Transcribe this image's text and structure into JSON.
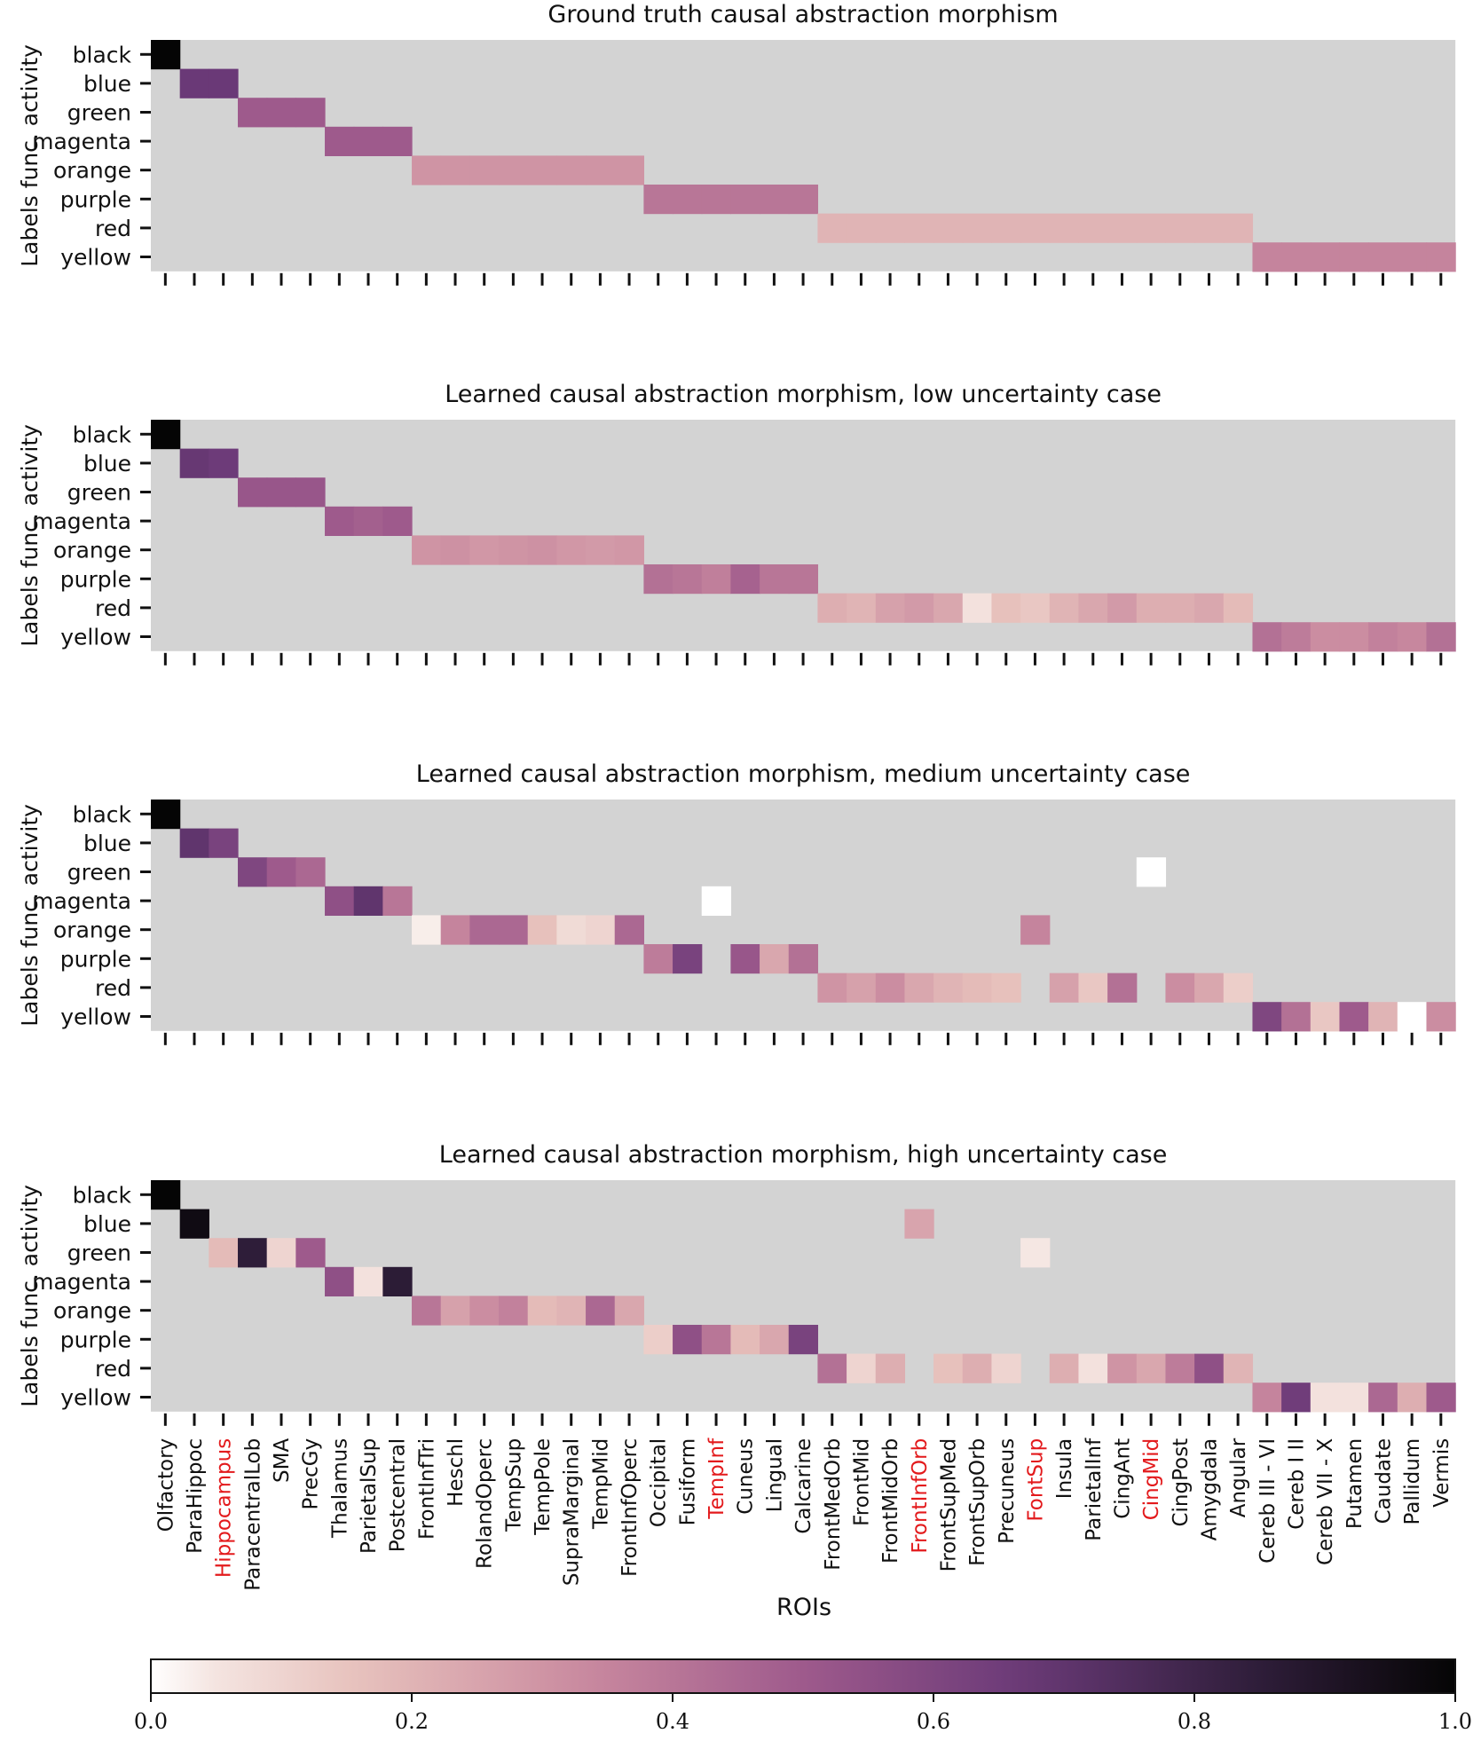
{
  "figure": {
    "xlabel": "ROIs",
    "ylabel": "Labels func. activity"
  },
  "colorbar": {
    "ticks": [
      "0.0",
      "0.2",
      "0.4",
      "0.6",
      "0.8",
      "1.0"
    ],
    "range": [
      0,
      1
    ]
  },
  "chart_data": {
    "type": "heatmap",
    "background_color": "#d3d3d3",
    "highlight_color": "#e31a1c",
    "color_stops": [
      "#faf4f0",
      "#e6bfba",
      "#c9899f",
      "#9e5a8c",
      "#6b3a78",
      "#33203f",
      "#050505"
    ],
    "rows": [
      "black",
      "blue",
      "green",
      "magenta",
      "orange",
      "purple",
      "red",
      "yellow"
    ],
    "columns": [
      "Olfactory",
      "ParaHippoc",
      "Hippocampus",
      "ParacentralLob",
      "SMA",
      "PrecGy",
      "Thalamus",
      "ParietalSup",
      "Postcentral",
      "FrontInfTri",
      "Heschl",
      "RolandOperc",
      "TempSup",
      "TempPole",
      "SupraMarginal",
      "TempMid",
      "FrontInfOperc",
      "Occipital",
      "Fusiform",
      "TempInf",
      "Cuneus",
      "Lingual",
      "Calcarine",
      "FrontMedOrb",
      "FrontMid",
      "FrontMidOrb",
      "FrontInfOrb",
      "FrontSupMed",
      "FrontSupOrb",
      "Precuneus",
      "FontSup",
      "Insula",
      "ParietalInf",
      "CingAnt",
      "CingMid",
      "CingPost",
      "Amygdala",
      "Angular",
      "Cereb III - VI",
      "Cereb I II",
      "Cereb VII - X",
      "Putamen",
      "Caudate",
      "Pallidum",
      "Vermis"
    ],
    "highlighted_columns": [
      "Hippocampus",
      "TempInf",
      "FrontInfOrb",
      "FontSup",
      "CingMid"
    ],
    "panels": [
      {
        "title": "Ground truth causal abstraction morphism",
        "cells": [
          [
            "black",
            0,
            1.0
          ],
          [
            "blue",
            1,
            0.67
          ],
          [
            "blue",
            2,
            0.67
          ],
          [
            "green",
            3,
            0.5
          ],
          [
            "green",
            4,
            0.5
          ],
          [
            "green",
            5,
            0.5
          ],
          [
            "magenta",
            6,
            0.5
          ],
          [
            "magenta",
            7,
            0.5
          ],
          [
            "magenta",
            8,
            0.5
          ],
          [
            "orange",
            9,
            0.3
          ],
          [
            "orange",
            10,
            0.3
          ],
          [
            "orange",
            11,
            0.3
          ],
          [
            "orange",
            12,
            0.3
          ],
          [
            "orange",
            13,
            0.3
          ],
          [
            "orange",
            14,
            0.3
          ],
          [
            "orange",
            15,
            0.3
          ],
          [
            "orange",
            16,
            0.3
          ],
          [
            "purple",
            17,
            0.4
          ],
          [
            "purple",
            18,
            0.4
          ],
          [
            "purple",
            19,
            0.4
          ],
          [
            "purple",
            20,
            0.4
          ],
          [
            "purple",
            21,
            0.4
          ],
          [
            "purple",
            22,
            0.4
          ],
          [
            "red",
            23,
            0.2
          ],
          [
            "red",
            24,
            0.2
          ],
          [
            "red",
            25,
            0.2
          ],
          [
            "red",
            26,
            0.2
          ],
          [
            "red",
            27,
            0.2
          ],
          [
            "red",
            28,
            0.2
          ],
          [
            "red",
            29,
            0.2
          ],
          [
            "red",
            30,
            0.2
          ],
          [
            "red",
            31,
            0.2
          ],
          [
            "red",
            32,
            0.2
          ],
          [
            "red",
            33,
            0.2
          ],
          [
            "red",
            34,
            0.2
          ],
          [
            "red",
            35,
            0.2
          ],
          [
            "red",
            36,
            0.2
          ],
          [
            "red",
            37,
            0.2
          ],
          [
            "yellow",
            38,
            0.35
          ],
          [
            "yellow",
            39,
            0.35
          ],
          [
            "yellow",
            40,
            0.35
          ],
          [
            "yellow",
            41,
            0.35
          ],
          [
            "yellow",
            42,
            0.35
          ],
          [
            "yellow",
            43,
            0.35
          ],
          [
            "yellow",
            44,
            0.35
          ]
        ]
      },
      {
        "title": "Learned causal abstraction morphism, low uncertainty case",
        "cells": [
          [
            "black",
            0,
            1.0
          ],
          [
            "blue",
            1,
            0.68
          ],
          [
            "blue",
            2,
            0.66
          ],
          [
            "green",
            3,
            0.52
          ],
          [
            "green",
            4,
            0.52
          ],
          [
            "green",
            5,
            0.52
          ],
          [
            "magenta",
            6,
            0.5
          ],
          [
            "magenta",
            7,
            0.48
          ],
          [
            "magenta",
            8,
            0.5
          ],
          [
            "orange",
            9,
            0.3
          ],
          [
            "orange",
            10,
            0.31
          ],
          [
            "orange",
            11,
            0.29
          ],
          [
            "orange",
            12,
            0.3
          ],
          [
            "orange",
            13,
            0.31
          ],
          [
            "orange",
            14,
            0.29
          ],
          [
            "orange",
            15,
            0.28
          ],
          [
            "orange",
            16,
            0.29
          ],
          [
            "purple",
            17,
            0.42
          ],
          [
            "purple",
            18,
            0.4
          ],
          [
            "purple",
            19,
            0.37
          ],
          [
            "purple",
            20,
            0.47
          ],
          [
            "purple",
            21,
            0.4
          ],
          [
            "purple",
            22,
            0.4
          ],
          [
            "red",
            23,
            0.22
          ],
          [
            "red",
            24,
            0.2
          ],
          [
            "red",
            25,
            0.26
          ],
          [
            "red",
            26,
            0.28
          ],
          [
            "red",
            27,
            0.24
          ],
          [
            "red",
            28,
            0.06
          ],
          [
            "red",
            29,
            0.16
          ],
          [
            "red",
            30,
            0.14
          ],
          [
            "red",
            31,
            0.2
          ],
          [
            "red",
            32,
            0.24
          ],
          [
            "red",
            33,
            0.28
          ],
          [
            "red",
            34,
            0.22
          ],
          [
            "red",
            35,
            0.22
          ],
          [
            "red",
            36,
            0.24
          ],
          [
            "red",
            37,
            0.18
          ],
          [
            "yellow",
            38,
            0.42
          ],
          [
            "yellow",
            39,
            0.38
          ],
          [
            "yellow",
            40,
            0.32
          ],
          [
            "yellow",
            41,
            0.32
          ],
          [
            "yellow",
            42,
            0.36
          ],
          [
            "yellow",
            43,
            0.34
          ],
          [
            "yellow",
            44,
            0.42
          ]
        ]
      },
      {
        "title": "Learned causal abstraction morphism, medium uncertainty case",
        "cells": [
          [
            "black",
            0,
            1.0
          ],
          [
            "blue",
            1,
            0.7
          ],
          [
            "blue",
            2,
            0.62
          ],
          [
            "green",
            3,
            0.6
          ],
          [
            "green",
            4,
            0.5
          ],
          [
            "green",
            5,
            0.45
          ],
          [
            "green",
            34,
            0.0
          ],
          [
            "magenta",
            6,
            0.55
          ],
          [
            "magenta",
            7,
            0.7
          ],
          [
            "magenta",
            8,
            0.4
          ],
          [
            "magenta",
            19,
            0.0
          ],
          [
            "orange",
            9,
            0.02
          ],
          [
            "orange",
            10,
            0.35
          ],
          [
            "orange",
            11,
            0.45
          ],
          [
            "orange",
            12,
            0.45
          ],
          [
            "orange",
            13,
            0.16
          ],
          [
            "orange",
            14,
            0.08
          ],
          [
            "orange",
            15,
            0.1
          ],
          [
            "orange",
            16,
            0.45
          ],
          [
            "orange",
            30,
            0.35
          ],
          [
            "purple",
            17,
            0.38
          ],
          [
            "purple",
            18,
            0.62
          ],
          [
            "purple",
            20,
            0.52
          ],
          [
            "purple",
            21,
            0.24
          ],
          [
            "purple",
            22,
            0.42
          ],
          [
            "red",
            23,
            0.3
          ],
          [
            "red",
            24,
            0.26
          ],
          [
            "red",
            25,
            0.32
          ],
          [
            "red",
            26,
            0.24
          ],
          [
            "red",
            27,
            0.2
          ],
          [
            "red",
            28,
            0.18
          ],
          [
            "red",
            29,
            0.16
          ],
          [
            "red",
            31,
            0.26
          ],
          [
            "red",
            32,
            0.14
          ],
          [
            "red",
            33,
            0.42
          ],
          [
            "red",
            35,
            0.32
          ],
          [
            "red",
            36,
            0.24
          ],
          [
            "red",
            37,
            0.12
          ],
          [
            "yellow",
            38,
            0.6
          ],
          [
            "yellow",
            39,
            0.42
          ],
          [
            "yellow",
            40,
            0.14
          ],
          [
            "yellow",
            41,
            0.5
          ],
          [
            "yellow",
            42,
            0.2
          ],
          [
            "yellow",
            43,
            0.0
          ],
          [
            "yellow",
            44,
            0.32
          ]
        ]
      },
      {
        "title": "Learned causal abstraction morphism, high uncertainty case",
        "cells": [
          [
            "black",
            0,
            1.0
          ],
          [
            "blue",
            1,
            0.96
          ],
          [
            "blue",
            26,
            0.25
          ],
          [
            "green",
            2,
            0.18
          ],
          [
            "green",
            3,
            0.85
          ],
          [
            "green",
            4,
            0.1
          ],
          [
            "green",
            5,
            0.5
          ],
          [
            "green",
            30,
            0.04
          ],
          [
            "magenta",
            6,
            0.55
          ],
          [
            "magenta",
            7,
            0.06
          ],
          [
            "magenta",
            8,
            0.86
          ],
          [
            "orange",
            9,
            0.4
          ],
          [
            "orange",
            10,
            0.26
          ],
          [
            "orange",
            11,
            0.32
          ],
          [
            "orange",
            12,
            0.36
          ],
          [
            "orange",
            13,
            0.18
          ],
          [
            "orange",
            14,
            0.2
          ],
          [
            "orange",
            15,
            0.45
          ],
          [
            "orange",
            16,
            0.24
          ],
          [
            "purple",
            17,
            0.12
          ],
          [
            "purple",
            18,
            0.55
          ],
          [
            "purple",
            19,
            0.4
          ],
          [
            "purple",
            20,
            0.18
          ],
          [
            "purple",
            21,
            0.24
          ],
          [
            "purple",
            22,
            0.62
          ],
          [
            "red",
            23,
            0.42
          ],
          [
            "red",
            24,
            0.1
          ],
          [
            "red",
            25,
            0.22
          ],
          [
            "red",
            27,
            0.16
          ],
          [
            "red",
            28,
            0.22
          ],
          [
            "red",
            29,
            0.1
          ],
          [
            "red",
            31,
            0.22
          ],
          [
            "red",
            32,
            0.06
          ],
          [
            "red",
            33,
            0.3
          ],
          [
            "red",
            34,
            0.24
          ],
          [
            "red",
            35,
            0.38
          ],
          [
            "red",
            36,
            0.55
          ],
          [
            "red",
            37,
            0.2
          ],
          [
            "yellow",
            38,
            0.35
          ],
          [
            "yellow",
            39,
            0.65
          ],
          [
            "yellow",
            40,
            0.06
          ],
          [
            "yellow",
            41,
            0.06
          ],
          [
            "yellow",
            42,
            0.45
          ],
          [
            "yellow",
            43,
            0.22
          ],
          [
            "yellow",
            44,
            0.5
          ]
        ]
      }
    ]
  }
}
